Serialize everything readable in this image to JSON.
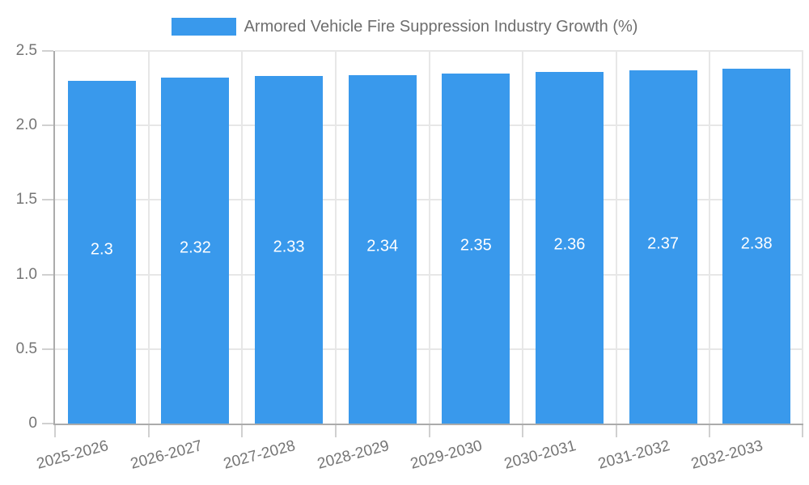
{
  "chart_data": {
    "type": "bar",
    "title": "Armored Vehicle Fire Suppression Industry Growth (%)",
    "legend_label": "Armored Vehicle Fire Suppression Industry Growth (%)",
    "legend_position": "top",
    "categories": [
      "2025-2026",
      "2026-2027",
      "2027-2028",
      "2028-2029",
      "2029-2030",
      "2030-2031",
      "2031-2032",
      "2032-2033"
    ],
    "values": [
      2.3,
      2.32,
      2.33,
      2.34,
      2.35,
      2.36,
      2.37,
      2.38
    ],
    "bar_labels": [
      "2.3",
      "2.32",
      "2.33",
      "2.34",
      "2.35",
      "2.36",
      "2.37",
      "2.38"
    ],
    "xlabel": "",
    "ylabel": "",
    "ylim": [
      0,
      2.5
    ],
    "y_ticks": [
      {
        "value": 0,
        "label": "0"
      },
      {
        "value": 0.5,
        "label": "0.5"
      },
      {
        "value": 1.0,
        "label": "1.0"
      },
      {
        "value": 1.5,
        "label": "1.5"
      },
      {
        "value": 2.0,
        "label": "2.0"
      },
      {
        "value": 2.5,
        "label": "2.5"
      }
    ],
    "grid": true,
    "colors": {
      "bar": "#3999ec",
      "grid": "#e7e7e7",
      "axis": "#ababab",
      "tick": "#d0d0d0",
      "axis_text": "#757575",
      "legend_text": "#6e6e6e",
      "bar_label_text": "#ffffff",
      "background": "#ffffff"
    }
  }
}
